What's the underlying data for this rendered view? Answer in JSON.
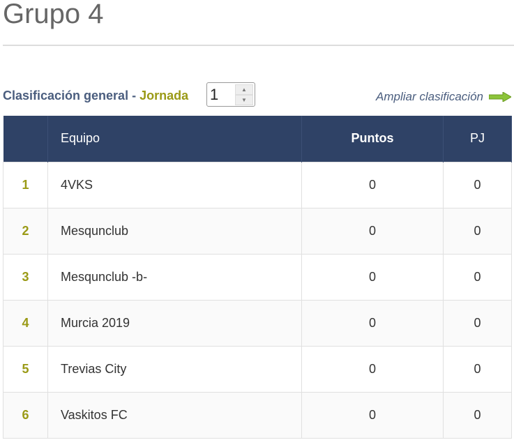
{
  "title": "Grupo 4",
  "subtitle": {
    "general": "Clasificación general -",
    "jornada": "Jornada",
    "jornada_value": "1"
  },
  "ampliar": "Ampliar clasificación",
  "colors": {
    "header_bg": "#2f4266",
    "accent": "#9a9a16",
    "link": "#4a5d7e"
  },
  "table": {
    "headers": [
      "",
      "Equipo",
      "Puntos",
      "PJ"
    ],
    "rows": [
      {
        "pos": "1",
        "team": "4VKS",
        "pts": "0",
        "pj": "0"
      },
      {
        "pos": "2",
        "team": "Mesqunclub",
        "pts": "0",
        "pj": "0"
      },
      {
        "pos": "3",
        "team": "Mesqunclub -b-",
        "pts": "0",
        "pj": "0"
      },
      {
        "pos": "4",
        "team": "Murcia 2019",
        "pts": "0",
        "pj": "0"
      },
      {
        "pos": "5",
        "team": "Trevias City",
        "pts": "0",
        "pj": "0"
      },
      {
        "pos": "6",
        "team": "Vaskitos FC",
        "pts": "0",
        "pj": "0"
      }
    ]
  }
}
